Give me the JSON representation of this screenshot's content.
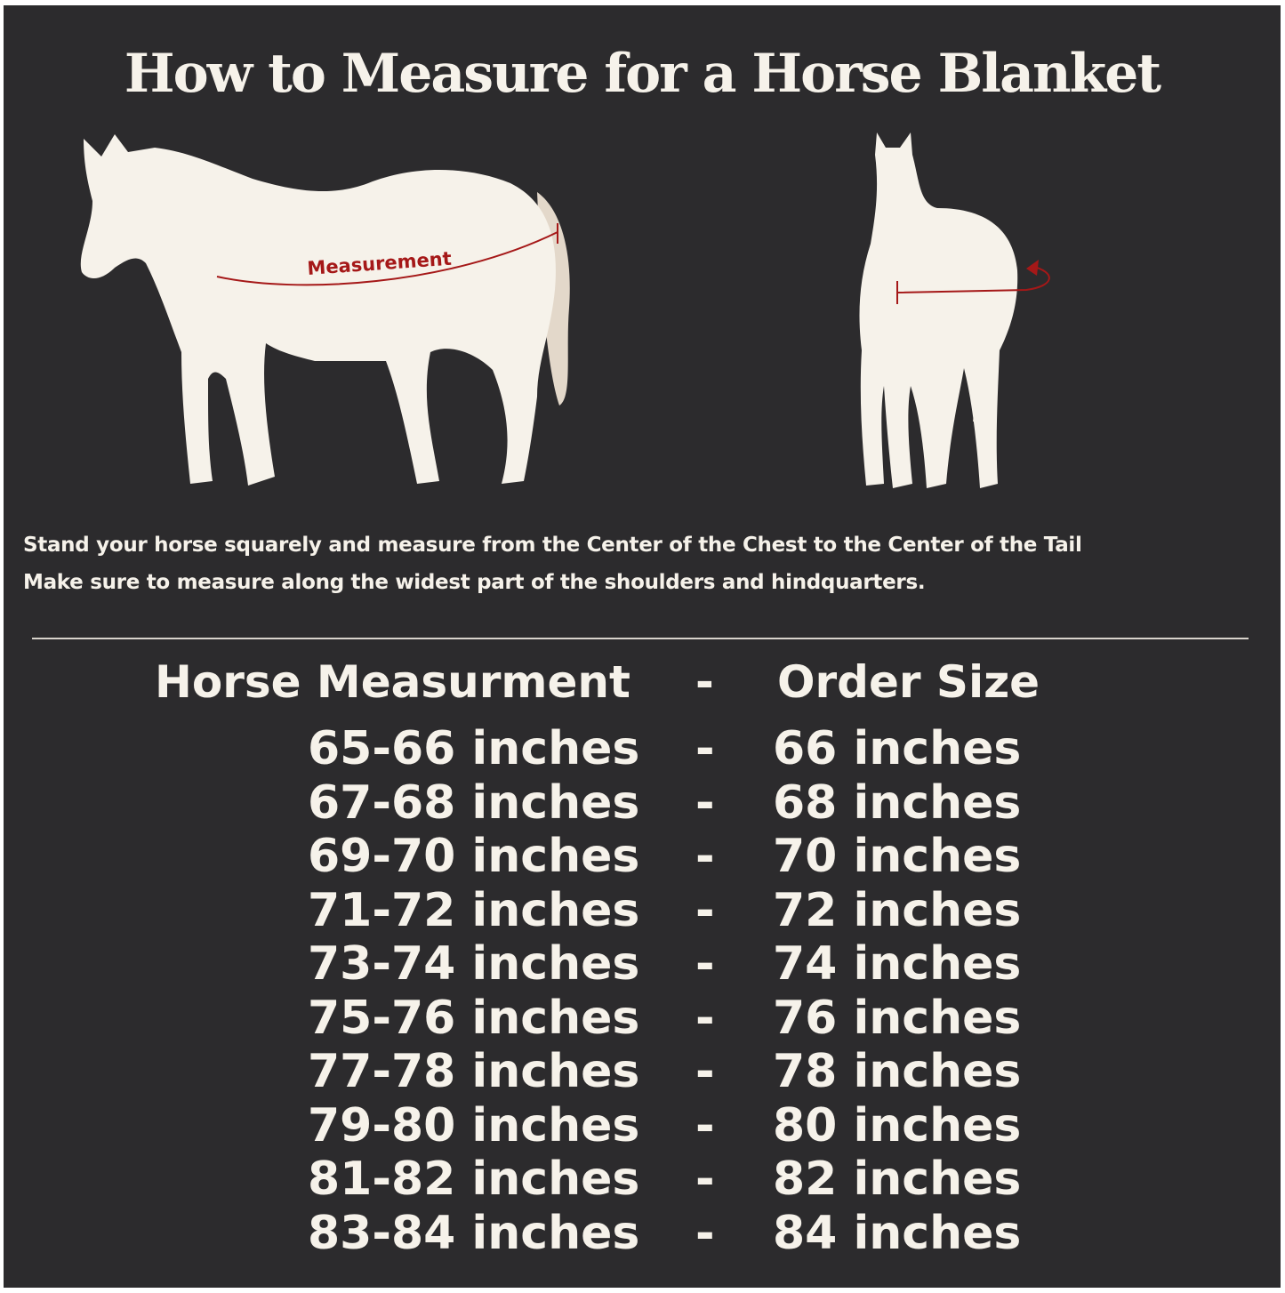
{
  "title": "How to Measure for a Horse Blanket",
  "illustration": {
    "side_label": "Measurement",
    "accent_color": "#a51818",
    "horse_color": "#f6f2ea",
    "background_color": "#2c2b2d"
  },
  "instructions": [
    "Stand your horse squarely and measure from the Center of the Chest to the Center of the Tail",
    "Make sure to measure along the widest part of the shoulders and hindquarters."
  ],
  "table": {
    "header": {
      "measurement": "Horse Measurment",
      "separator": "-",
      "size": "Order Size"
    },
    "rows": [
      {
        "measurement": "65-66 inches",
        "separator": "-",
        "size": "66 inches"
      },
      {
        "measurement": "67-68 inches",
        "separator": "-",
        "size": "68 inches"
      },
      {
        "measurement": "69-70 inches",
        "separator": "-",
        "size": "70 inches"
      },
      {
        "measurement": "71-72 inches",
        "separator": "-",
        "size": "72 inches"
      },
      {
        "measurement": "73-74 inches",
        "separator": "-",
        "size": "74 inches"
      },
      {
        "measurement": "75-76 inches",
        "separator": "-",
        "size": "76 inches"
      },
      {
        "measurement": "77-78 inches",
        "separator": "-",
        "size": "78 inches"
      },
      {
        "measurement": "79-80 inches",
        "separator": "-",
        "size": "80 inches"
      },
      {
        "measurement": "81-82 inches",
        "separator": "-",
        "size": "82 inches"
      },
      {
        "measurement": "83-84 inches",
        "separator": "-",
        "size": "84 inches"
      }
    ]
  }
}
